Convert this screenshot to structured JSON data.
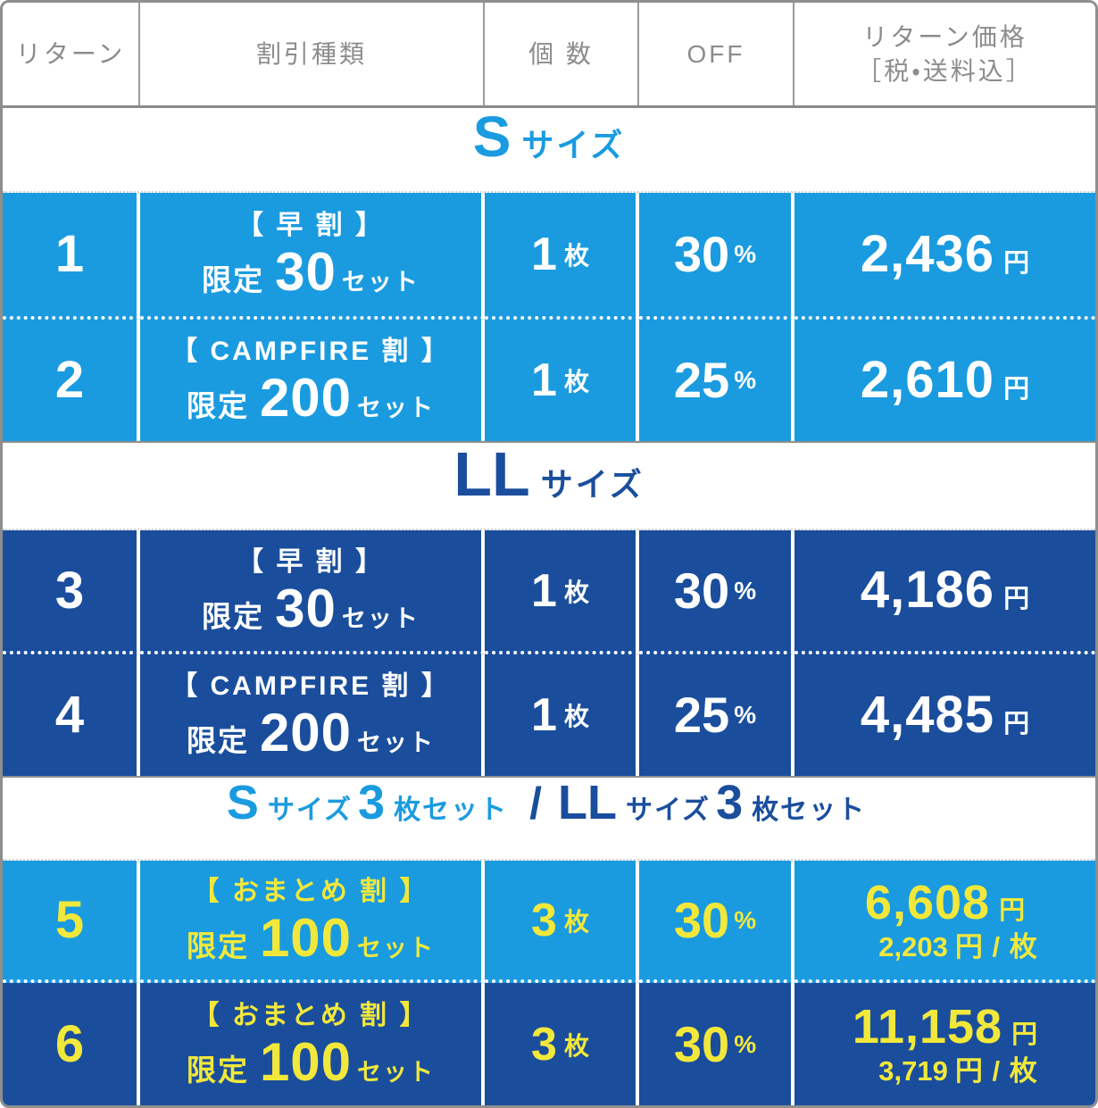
{
  "colors": {
    "light_blue": "#1A9BE0",
    "dark_blue": "#1A4E9D",
    "yellow": "#F2E83B",
    "header_text_gray": "#8C8C8C",
    "border_gray": "#8E8E8E"
  },
  "header": {
    "col_return": "リターン",
    "col_discount_type": "割引種類",
    "col_quantity": "個 数",
    "col_off": "OFF",
    "col_price_line1": "リターン価格",
    "col_price_line2": "［税・送料込］"
  },
  "sections": {
    "s_size": {
      "big": "S",
      "small": "サイズ"
    },
    "ll_size": {
      "big": "LL",
      "small": "サイズ"
    },
    "combo": {
      "s_big": "S",
      "s_small": "サイズ",
      "s_count": "3",
      "s_suffix": "枚セット",
      "slash": "/",
      "ll_big": "LL",
      "ll_small": "サイズ",
      "ll_count": "3",
      "ll_suffix": "枚セット"
    }
  },
  "rows": [
    {
      "number": "1",
      "discount_title": "【 早 割 】",
      "limited_label": "限定",
      "limited_count": "30",
      "limited_suffix": "セット",
      "qty_value": "1",
      "qty_unit": "枚",
      "off_value": "30",
      "off_unit": "%",
      "price_value": "2,436",
      "price_unit": "円"
    },
    {
      "number": "2",
      "discount_title": "【 CAMPFIRE 割 】",
      "limited_label": "限定",
      "limited_count": "200",
      "limited_suffix": "セット",
      "qty_value": "1",
      "qty_unit": "枚",
      "off_value": "25",
      "off_unit": "%",
      "price_value": "2,610",
      "price_unit": "円"
    },
    {
      "number": "3",
      "discount_title": "【 早 割 】",
      "limited_label": "限定",
      "limited_count": "30",
      "limited_suffix": "セット",
      "qty_value": "1",
      "qty_unit": "枚",
      "off_value": "30",
      "off_unit": "%",
      "price_value": "4,186",
      "price_unit": "円"
    },
    {
      "number": "4",
      "discount_title": "【 CAMPFIRE 割 】",
      "limited_label": "限定",
      "limited_count": "200",
      "limited_suffix": "セット",
      "qty_value": "1",
      "qty_unit": "枚",
      "off_value": "25",
      "off_unit": "%",
      "price_value": "4,485",
      "price_unit": "円"
    },
    {
      "number": "5",
      "discount_title": "【 おまとめ 割 】",
      "limited_label": "限定",
      "limited_count": "100",
      "limited_suffix": "セット",
      "qty_value": "3",
      "qty_unit": "枚",
      "off_value": "30",
      "off_unit": "%",
      "price_value": "6,608",
      "price_unit": "円",
      "per_value": "2,203",
      "per_unit": "円 / 枚"
    },
    {
      "number": "6",
      "discount_title": "【 おまとめ 割 】",
      "limited_label": "限定",
      "limited_count": "100",
      "limited_suffix": "セット",
      "qty_value": "3",
      "qty_unit": "枚",
      "off_value": "30",
      "off_unit": "%",
      "price_value": "11,158",
      "price_unit": "円",
      "per_value": "3,719",
      "per_unit": "円 / 枚"
    }
  ]
}
